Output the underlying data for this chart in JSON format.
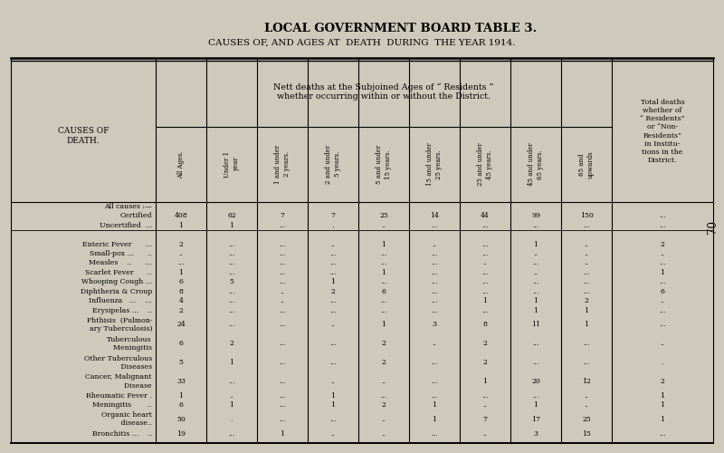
{
  "title": "LOCAL GOVERNMENT BOARD TABLE 3.",
  "subtitle": "CAUSES OF, AND AGES AT  DEATH  DURING  THE YEAR 1914.",
  "bg_color": "#cdc9bb",
  "header1": "Nett deaths at the Subjoined Ages of “ Residents ”\nwhether occurring within or without the District.",
  "header2": "Total deaths\nwhether of\n“ Residents”\nor “Non-\nResidents”\nin Institu-\ntions in the\nDistrict.",
  "col_header_left": "CAUSES OF\nDEATH.",
  "age_headers": [
    "All Ages.",
    "Under 1\nyear",
    "1 and under\n2 years.",
    "2 and under\n5 years.",
    "5 and under\n15 years.",
    "15 and under\n25 years.",
    "25 and under\n45 years.",
    "45 and under\n65 years.",
    "65 and\nupwards"
  ],
  "rows": [
    {
      "cause": "All causes :—",
      "indent": false,
      "values": [
        "",
        "",
        "",
        "",
        "",
        "",
        "",
        "",
        ""
      ],
      "last": ""
    },
    {
      "cause": "Certified",
      "indent": true,
      "values": [
        "408",
        "62",
        "7",
        "7",
        "25",
        "14",
        "44",
        "99",
        "150"
      ],
      "last": "..."
    },
    {
      "cause": "Uncertified  ...",
      "indent": true,
      "values": [
        "1",
        "1",
        "...",
        ".",
        "..",
        "...",
        "...",
        "...",
        "..."
      ],
      "last": "..."
    },
    {
      "cause": "",
      "indent": false,
      "values": [
        "",
        "",
        "",
        "",
        "",
        "",
        "",
        "",
        ""
      ],
      "last": ""
    },
    {
      "cause": "Enteric Fever      ...",
      "indent": false,
      "values": [
        "2",
        "...",
        "...",
        "..",
        "1",
        "..",
        "...",
        "1",
        ".."
      ],
      "last": "2"
    },
    {
      "cause": "Small-pox ...      ..",
      "indent": false,
      "values": [
        "..",
        "...",
        "...",
        "...",
        "...",
        "...",
        "...",
        "..",
        ".."
      ],
      "last": ".."
    },
    {
      "cause": "Measles    ..      ...",
      "indent": false,
      "values": [
        "...",
        "...",
        "...",
        "...",
        "...",
        "...",
        "..",
        "...",
        ".."
      ],
      "last": "..."
    },
    {
      "cause": "Scarlet Fever      ..",
      "indent": false,
      "values": [
        "1",
        "...",
        "...",
        "...",
        "1",
        "...",
        "...",
        "..",
        "..."
      ],
      "last": "1"
    },
    {
      "cause": "Whooping Cough ...",
      "indent": false,
      "values": [
        "6",
        "5",
        "...",
        "1",
        "...",
        "...",
        "...",
        "...",
        "..."
      ],
      "last": "..."
    },
    {
      "cause": "Diphtheria & Croup",
      "indent": false,
      "values": [
        "8",
        "...",
        "..",
        "2",
        "6",
        "...",
        "...",
        "...",
        "..."
      ],
      "last": "6"
    },
    {
      "cause": "Influenza   ...    ...",
      "indent": false,
      "values": [
        "4",
        "...",
        "..",
        "...",
        "...",
        "...",
        "1",
        "1",
        "2"
      ],
      "last": ".."
    },
    {
      "cause": "Erysipelas ...    ..",
      "indent": false,
      "values": [
        "2",
        "...",
        "...",
        "...",
        "...",
        "...",
        "...",
        "1",
        "1"
      ],
      "last": "..."
    },
    {
      "cause": "Phthisis  (Pulmon-\n  ary Tuberculosis)",
      "indent": false,
      "values": [
        "24",
        "...",
        "...",
        "..",
        "1",
        "3",
        "8",
        "11",
        "1"
      ],
      "last": "..."
    },
    {
      "cause": "Tuberculous\n    Meningitis",
      "indent": false,
      "values": [
        "6",
        "2",
        "...",
        "...",
        "2",
        "..",
        "2",
        "...",
        "..."
      ],
      "last": ".."
    },
    {
      "cause": "Other Tuberculous\n       Diseases",
      "indent": false,
      "values": [
        "5",
        "1",
        "...",
        "...",
        "2",
        "...",
        "2",
        "...",
        "..."
      ],
      "last": "."
    },
    {
      "cause": "Cancer, Malignant\n          Disease",
      "indent": false,
      "values": [
        "33",
        "...",
        "...",
        "..",
        "..",
        "...",
        "1",
        "20",
        "12"
      ],
      "last": "2"
    },
    {
      "cause": "Rheumatic Fever .",
      "indent": false,
      "values": [
        "1",
        "..",
        "...",
        "1",
        "...",
        "...",
        "...",
        "...",
        ".."
      ],
      "last": "1"
    },
    {
      "cause": "Meningitis       ..",
      "indent": false,
      "values": [
        "6",
        "1",
        "...",
        "1",
        "2",
        "1",
        "..",
        "1",
        ".."
      ],
      "last": "1"
    },
    {
      "cause": "Organic heart\n     disease..",
      "indent": false,
      "values": [
        "50",
        ".",
        "...",
        "...",
        "..",
        "1",
        "7",
        "17",
        "25"
      ],
      "last": "1"
    },
    {
      "cause": "Bronchitis ...    ..",
      "indent": false,
      "values": [
        "19",
        "...",
        "1",
        "..",
        "..",
        "...",
        "..",
        "3",
        "15"
      ],
      "last": "..."
    }
  ]
}
